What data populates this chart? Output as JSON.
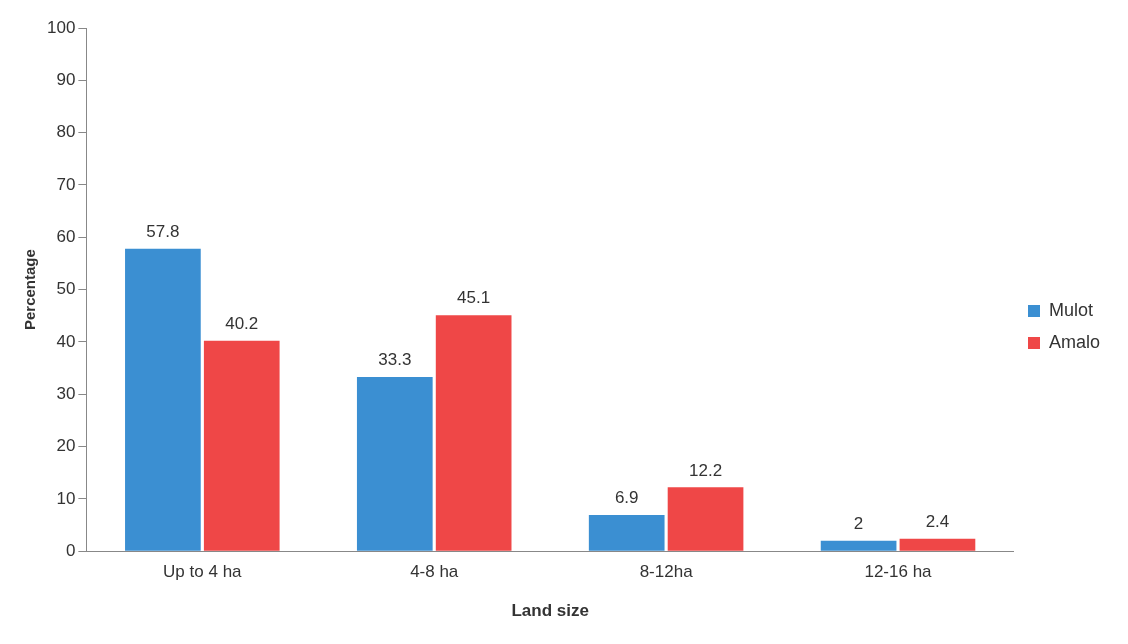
{
  "chart_data": {
    "type": "bar",
    "xlabel": "Land size",
    "ylabel": "Percentage",
    "categories": [
      "Up to 4 ha",
      "4-8 ha",
      "8-12ha",
      "12-16 ha"
    ],
    "series": [
      {
        "name": "Mulot",
        "color": "#3b8fd2",
        "values": [
          57.8,
          33.3,
          6.9,
          2
        ]
      },
      {
        "name": "Amalo",
        "color": "#ef4747",
        "values": [
          40.2,
          45.1,
          12.2,
          2.4
        ]
      }
    ],
    "ylim": [
      0,
      100
    ],
    "yticks": [
      0,
      10,
      20,
      30,
      40,
      50,
      60,
      70,
      80,
      90,
      100
    ],
    "grid": false,
    "legend": "right",
    "data_labels": true
  }
}
